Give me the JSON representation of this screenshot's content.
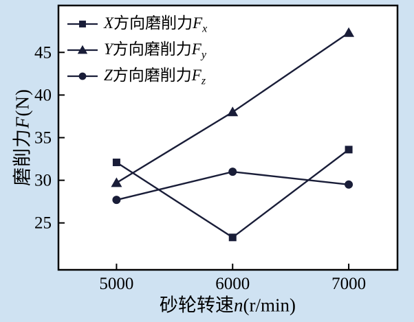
{
  "chart_data": {
    "type": "line",
    "x": [
      5000,
      6000,
      7000
    ],
    "x_ticks": [
      "5000",
      "6000",
      "7000"
    ],
    "y_ticks": [
      25,
      30,
      35,
      40,
      45
    ],
    "xlim": [
      4500,
      7420
    ],
    "ylim": [
      19.5,
      50.5
    ],
    "grid": false,
    "legend_position": "top-left-inside",
    "xlabel": "砂轮转速n(r/min)",
    "ylabel": "磨削力F(N)",
    "xlabel_parts": {
      "pre": "砂轮转速",
      "var": "n",
      "unit": "(r/min)"
    },
    "ylabel_parts": {
      "pre": "磨削力",
      "var": "F",
      "unit": "(N)"
    },
    "series": [
      {
        "name": "X方向磨削力Fx",
        "marker": "square",
        "values": [
          32.1,
          23.3,
          33.6
        ],
        "label_parts": {
          "var": "X",
          "mid": "方向磨削力",
          "F": "F",
          "sub": "x"
        }
      },
      {
        "name": "Y方向磨削力Fy",
        "marker": "triangle",
        "values": [
          29.7,
          38.0,
          47.3
        ],
        "label_parts": {
          "var": "Y",
          "mid": "方向磨削力",
          "F": "F",
          "sub": "y"
        }
      },
      {
        "name": "Z方向磨削力Fz",
        "marker": "circle",
        "values": [
          27.7,
          31.0,
          29.5
        ],
        "label_parts": {
          "var": "Z",
          "mid": "方向磨削力",
          "F": "F",
          "sub": "z"
        }
      }
    ],
    "colors": {
      "line": "#191d38",
      "background": "#cfe2f2",
      "plot_bg": "#ffffff",
      "axis": "#000000",
      "text": "#000000"
    }
  }
}
